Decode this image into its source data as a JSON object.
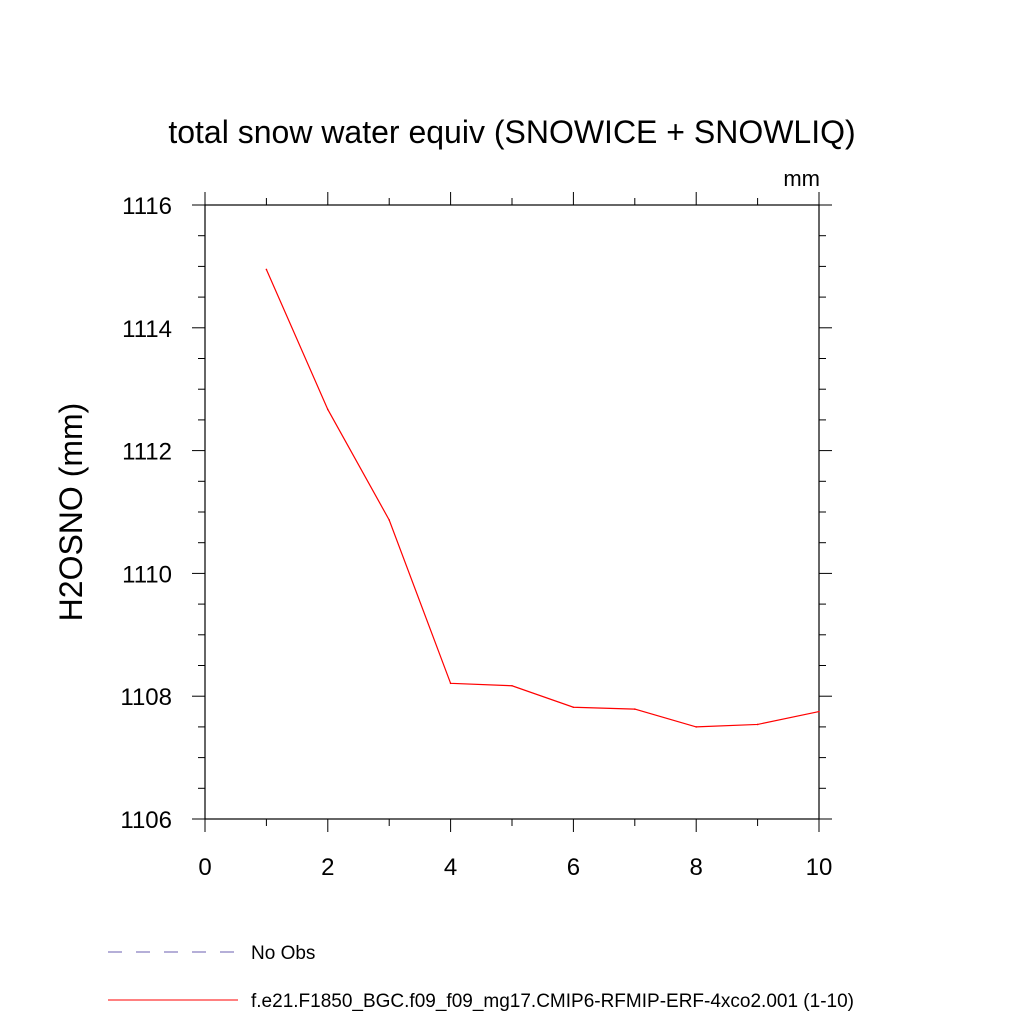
{
  "chart_data": {
    "type": "line",
    "title": "total snow water equiv (SNOWICE + SNOWLIQ)",
    "units_label": "mm",
    "xlabel": "",
    "ylabel": "H2OSNO  (mm)",
    "xlim": [
      0,
      10
    ],
    "ylim": [
      1106,
      1116
    ],
    "x_ticks": [
      0,
      2,
      4,
      6,
      8,
      10
    ],
    "y_ticks": [
      1106,
      1108,
      1110,
      1112,
      1114,
      1116
    ],
    "series": [
      {
        "name": "f.e21.F1850_BGC.f09_f09_mg17.CMIP6-RFMIP-ERF-4xco2.001 (1-10)",
        "color": "#ff0000",
        "style": "solid",
        "x": [
          1,
          2,
          3,
          4,
          5,
          6,
          7,
          8,
          9,
          10
        ],
        "y": [
          1114.95,
          1112.67,
          1110.87,
          1108.21,
          1108.17,
          1107.82,
          1107.79,
          1107.5,
          1107.54,
          1107.75
        ]
      }
    ],
    "legend": [
      {
        "label": "No Obs",
        "color": "#6b5fb0",
        "style": "dashed"
      },
      {
        "label": "f.e21.F1850_BGC.f09_f09_mg17.CMIP6-RFMIP-ERF-4xco2.001 (1-10)",
        "color": "#ff0000",
        "style": "solid"
      }
    ]
  }
}
